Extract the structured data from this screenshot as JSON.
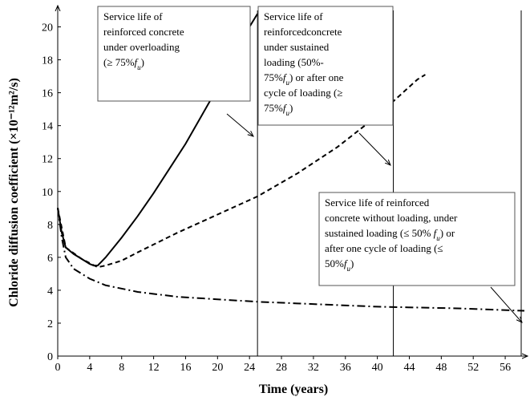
{
  "chart_data": {
    "type": "line",
    "xlabel": "Time (years)",
    "ylabel": "Chloride diffusion coefficient (×10⁻¹²m²/s)",
    "xlim": [
      0,
      58.4
    ],
    "ylim": [
      0,
      21
    ],
    "xticks": [
      0,
      4,
      8,
      12,
      16,
      20,
      24,
      28,
      32,
      36,
      40,
      44,
      48,
      52,
      56
    ],
    "yticks": [
      0,
      2,
      4,
      6,
      8,
      10,
      12,
      14,
      16,
      18,
      20
    ],
    "reference_lines_x": [
      25,
      42,
      58
    ],
    "series": [
      {
        "style": "solid",
        "color": "#000000",
        "x": [
          0,
          0.5,
          1,
          2,
          3,
          4,
          4.5,
          5,
          6,
          8,
          10,
          12,
          14,
          16,
          18,
          20,
          22,
          24,
          25
        ],
        "values": [
          9,
          7.5,
          6.6,
          6.2,
          5.9,
          5.6,
          5.5,
          5.5,
          6.0,
          7.2,
          8.5,
          9.9,
          11.4,
          12.9,
          14.6,
          16.3,
          18.1,
          20.0,
          20.8
        ]
      },
      {
        "style": "dashed",
        "color": "#000000",
        "x": [
          0,
          1,
          3,
          5,
          6,
          8,
          10,
          15,
          20,
          25,
          30,
          35,
          40,
          45,
          46
        ],
        "values": [
          9,
          6.6,
          5.9,
          5.4,
          5.5,
          5.8,
          6.3,
          7.5,
          8.6,
          9.7,
          11.1,
          12.7,
          14.6,
          16.8,
          17.1
        ]
      },
      {
        "style": "dashdot",
        "color": "#000000",
        "x": [
          0,
          0.5,
          1,
          2,
          4,
          6,
          10,
          15,
          20,
          25,
          30,
          40,
          50,
          58.4
        ],
        "values": [
          9,
          7.2,
          6.0,
          5.3,
          4.7,
          4.3,
          3.9,
          3.6,
          3.45,
          3.3,
          3.2,
          3.0,
          2.9,
          2.75
        ]
      }
    ],
    "annotations": [
      {
        "lines": [
          [
            {
              "text": "Service life of"
            }
          ],
          [
            {
              "text": "reinforced concrete"
            }
          ],
          [
            {
              "text": "under overloading"
            }
          ],
          [
            {
              "text": "(≥ 75%"
            },
            {
              "text": "f",
              "italic": true
            },
            {
              "text": "u",
              "italic": true,
              "sub": true
            },
            {
              "text": ")"
            }
          ]
        ]
      },
      {
        "lines": [
          [
            {
              "text": "Service life of"
            }
          ],
          [
            {
              "text": "reinforcedconcrete"
            }
          ],
          [
            {
              "text": "under sustained"
            }
          ],
          [
            {
              "text": "loading (50%-"
            }
          ],
          [
            {
              "text": "75%"
            },
            {
              "text": "f",
              "italic": true
            },
            {
              "text": "u",
              "italic": true,
              "sub": true
            },
            {
              "text": ") or after one"
            }
          ],
          [
            {
              "text": "cycle of loading (≥"
            }
          ],
          [
            {
              "text": "75%"
            },
            {
              "text": "f",
              "italic": true
            },
            {
              "text": "u",
              "italic": true,
              "sub": true
            },
            {
              "text": ")"
            }
          ]
        ]
      },
      {
        "lines": [
          [
            {
              "text": "Service life of reinforced"
            }
          ],
          [
            {
              "text": "concrete without loading, under"
            }
          ],
          [
            {
              "text": "sustained loading (≤ 50% "
            },
            {
              "text": "f",
              "italic": true
            },
            {
              "text": "u",
              "italic": true,
              "sub": true
            },
            {
              "text": ") or"
            }
          ],
          [
            {
              "text": "after one cycle of loading (≤"
            }
          ],
          [
            {
              "text": "50%"
            },
            {
              "text": "f",
              "italic": true
            },
            {
              "text": "u",
              "italic": true,
              "sub": true
            },
            {
              "text": ")"
            }
          ]
        ]
      }
    ]
  }
}
